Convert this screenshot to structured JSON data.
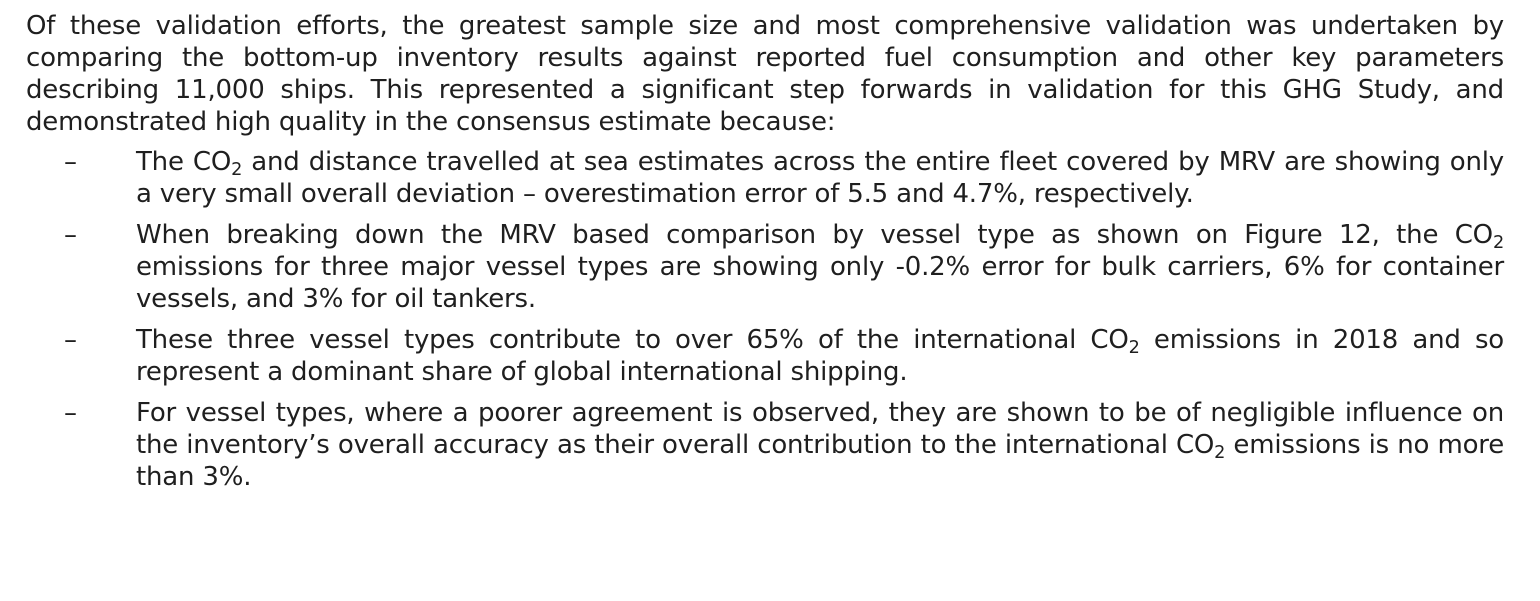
{
  "document": {
    "intro_paragraph": "Of these validation efforts, the greatest sample size and most comprehensive validation was undertaken by comparing the bottom-up inventory results against reported fuel consumption and other key parameters describing 11,000 ships. This represented a significant step forwards in validation for this GHG Study, and demonstrated high quality in the consensus estimate because:",
    "bullet_marker": "–",
    "bullets": [
      {
        "part1": "The CO",
        "sub": "2",
        "part2": " and distance travelled at sea estimates across the entire fleet covered by MRV are showing only a very small overall deviation – overestimation error of 5.5 and 4.7%, respectively."
      },
      {
        "part1": "When breaking down the MRV based comparison by vessel type as shown on Figure 12, the CO",
        "sub": "2",
        "part2": " emissions for three major vessel types are showing only -0.2% error for bulk carriers, 6% for container vessels, and 3% for oil tankers."
      },
      {
        "part1": "These three vessel types contribute to over 65% of the international CO",
        "sub": "2",
        "part2": " emissions in 2018 and so represent a dominant share of global international shipping."
      },
      {
        "part1": "For vessel types, where a poorer agreement is observed, they are shown to be of negligible influence on the inventory’s overall accuracy as their overall contribution to the international CO",
        "sub": "2",
        "part2": " emissions is no more than 3%."
      }
    ]
  }
}
